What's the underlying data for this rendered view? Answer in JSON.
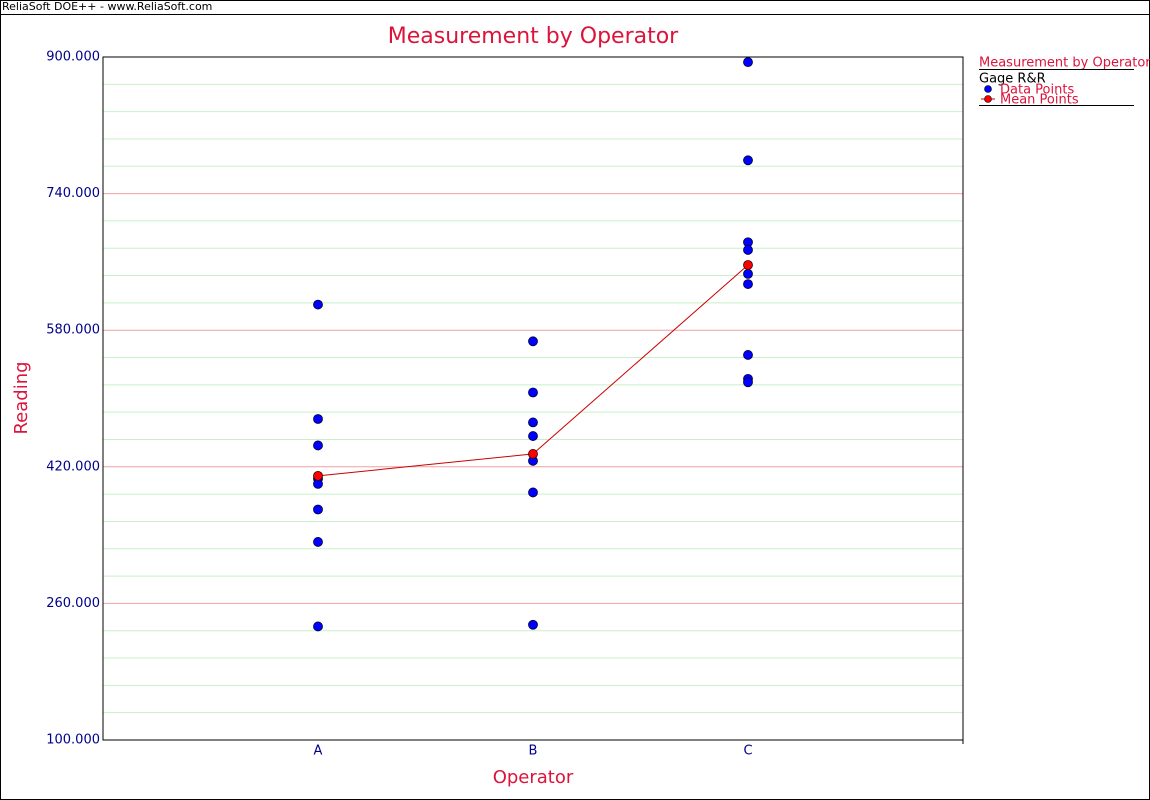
{
  "header": {
    "caption": "ReliaSoft DOE++ - www.ReliaSoft.com"
  },
  "chart_data": {
    "type": "scatter",
    "title": "Measurement by Operator",
    "subtitle": "Gage R&R",
    "x_label": "Operator",
    "y_label": "Reading",
    "categories": [
      "A",
      "B",
      "C"
    ],
    "ylim": [
      100,
      900
    ],
    "yticks": [
      {
        "value": 100,
        "label": "100.000"
      },
      {
        "value": 260,
        "label": "260.000"
      },
      {
        "value": 420,
        "label": "420.000"
      },
      {
        "value": 580,
        "label": "580.000"
      },
      {
        "value": 740,
        "label": "740.000"
      },
      {
        "value": 900,
        "label": "900.000"
      }
    ],
    "grid": true,
    "legend": "right",
    "series": [
      {
        "name": "Data Points",
        "color": "#0000ff",
        "values": [
          [
            610,
            476,
            445,
            406,
            400,
            370,
            332,
            233
          ],
          [
            567,
            507,
            472,
            456,
            427,
            390,
            235
          ],
          [
            894,
            779,
            683,
            674,
            646,
            634,
            551,
            523,
            519
          ]
        ]
      },
      {
        "name": "Mean Points",
        "color": "#ff0000",
        "line_color": "#cc0000",
        "values": [
          409.4,
          435.1,
          656.4
        ]
      }
    ]
  }
}
